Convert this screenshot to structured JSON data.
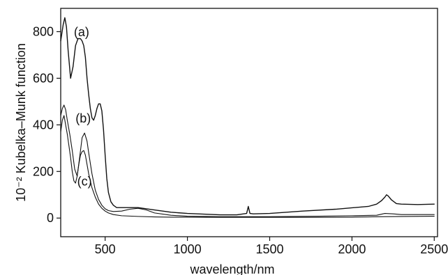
{
  "chart_data": {
    "type": "line",
    "title": "",
    "xlabel": "wavelength/nm",
    "ylabel": "10⁻² Kubelka–Munk function",
    "xlim": [
      230,
      2520
    ],
    "ylim": [
      -80,
      900
    ],
    "x_ticks": [
      500,
      1000,
      1500,
      2000,
      2500
    ],
    "y_ticks": [
      0,
      200,
      400,
      600,
      800
    ],
    "grid": false,
    "legend": "none",
    "series": [
      {
        "name": "(a)",
        "color": "#111111",
        "x": [
          230,
          245,
          255,
          265,
          275,
          290,
          305,
          320,
          335,
          350,
          360,
          370,
          380,
          390,
          400,
          410,
          420,
          430,
          440,
          450,
          460,
          470,
          480,
          490,
          500,
          510,
          520,
          535,
          550,
          570,
          600,
          650,
          700,
          800,
          900,
          1000,
          1200,
          1300,
          1360,
          1370,
          1380,
          1400,
          1500,
          1700,
          1900,
          2100,
          2150,
          2180,
          2200,
          2210,
          2220,
          2240,
          2270,
          2300,
          2400,
          2500
        ],
        "y": [
          760,
          830,
          860,
          820,
          720,
          600,
          650,
          740,
          770,
          770,
          760,
          740,
          690,
          600,
          530,
          470,
          430,
          420,
          440,
          470,
          490,
          490,
          460,
          380,
          270,
          170,
          110,
          70,
          55,
          45,
          45,
          45,
          45,
          35,
          25,
          20,
          14,
          14,
          20,
          50,
          20,
          18,
          20,
          30,
          38,
          50,
          60,
          75,
          90,
          100,
          95,
          78,
          62,
          60,
          58,
          60
        ]
      },
      {
        "name": "(b)",
        "color": "#111111",
        "x": [
          230,
          240,
          250,
          260,
          270,
          285,
          300,
          315,
          330,
          345,
          360,
          375,
          390,
          400,
          420,
          440,
          460,
          480,
          500,
          520,
          550,
          600,
          650,
          700,
          750,
          800,
          900,
          1000,
          1200,
          1500,
          1800,
          2000,
          2150,
          2200,
          2250,
          2300,
          2500
        ],
        "y": [
          440,
          470,
          485,
          465,
          420,
          360,
          290,
          210,
          180,
          260,
          345,
          365,
          330,
          280,
          190,
          120,
          80,
          55,
          40,
          32,
          28,
          30,
          38,
          42,
          35,
          22,
          12,
          8,
          6,
          6,
          8,
          10,
          12,
          20,
          18,
          15,
          15
        ]
      },
      {
        "name": "(c)",
        "color": "#111111",
        "x": [
          230,
          240,
          250,
          260,
          270,
          280,
          290,
          300,
          310,
          320,
          330,
          340,
          350,
          360,
          370,
          380,
          390,
          400,
          420,
          440,
          460,
          480,
          500,
          520,
          550,
          600,
          700,
          800,
          900,
          1000,
          1200,
          1500,
          1800,
          2000,
          2200,
          2500
        ],
        "y": [
          370,
          420,
          440,
          400,
          360,
          310,
          260,
          200,
          160,
          150,
          180,
          230,
          270,
          285,
          290,
          270,
          230,
          190,
          130,
          90,
          60,
          42,
          30,
          22,
          15,
          10,
          7,
          5,
          4,
          4,
          3,
          3,
          3,
          4,
          6,
          8
        ]
      }
    ],
    "annotations": [
      {
        "text": "(a)",
        "x": 310,
        "y": 780
      },
      {
        "text": "(b)",
        "x": 320,
        "y": 410
      },
      {
        "text": "(c)",
        "x": 330,
        "y": 140
      }
    ]
  }
}
